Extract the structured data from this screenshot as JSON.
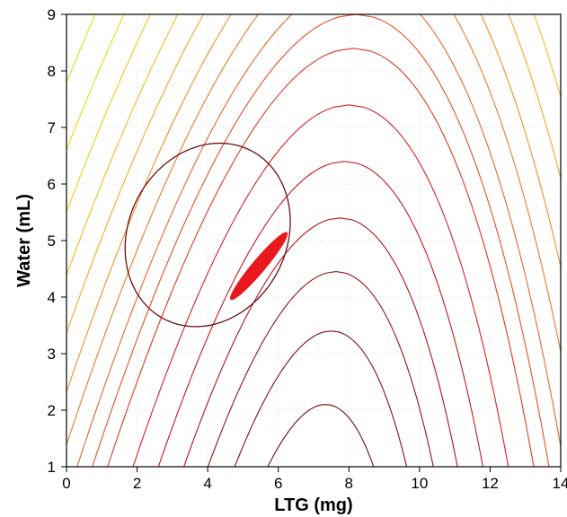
{
  "chart_data": {
    "type": "contour",
    "xlabel": "LTG (mg)",
    "ylabel": "Water (mL)",
    "xlim": [
      0,
      14
    ],
    "ylim": [
      1,
      9
    ],
    "xticks": [
      "0",
      "2",
      "4",
      "6",
      "8",
      "10",
      "12",
      "14"
    ],
    "yticks": [
      "1",
      "2",
      "3",
      "4",
      "5",
      "6",
      "7",
      "8",
      "9"
    ],
    "grid": true,
    "surface": {
      "model": "parabolic ridge",
      "ridge_x_at_y_1": 7.2,
      "ridge_x_at_y_9": 8.2,
      "peak_y": 2.1,
      "contour_peaks_y": [
        2.1,
        3.4,
        4.45,
        5.4,
        6.4,
        7.4,
        8.4,
        9.0,
        9.6,
        10.3,
        11.0,
        11.8,
        12.6,
        13.5,
        14.4,
        15.4,
        16.5,
        17.7,
        19.0,
        20.4,
        22.0,
        23.7,
        25.5
      ]
    },
    "contour_color_scale": [
      "#6b0f0f",
      "#a80f19",
      "#d81d23",
      "#e8572a",
      "#f08a2a",
      "#f3c21c",
      "#e9e11c",
      "#b5d226",
      "#6cb540",
      "#2e8b3e"
    ],
    "confidence_ellipse": {
      "center": [
        4.0,
        5.1
      ],
      "semi_axis_x": 2.5,
      "semi_axis_y": 1.65,
      "rotation_deg": 25,
      "color": "#6b0f0f"
    },
    "design_space": {
      "center": [
        5.45,
        4.55
      ],
      "semi_major": 0.95,
      "semi_minor": 0.14,
      "angle_deg": 50,
      "color": "#e8181c"
    }
  }
}
